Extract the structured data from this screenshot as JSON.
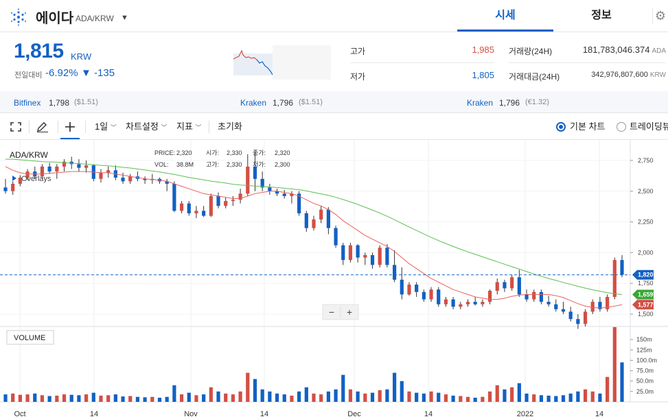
{
  "header": {
    "coin_name": "에이다",
    "pair": "ADA/KRW",
    "tabs": [
      {
        "label": "시세",
        "active": true
      },
      {
        "label": "정보",
        "active": false
      }
    ]
  },
  "price": {
    "current": "1,815",
    "unit": "KRW",
    "change_label": "전일대비",
    "change_pct": "-6.92%",
    "change_abs": "▼ -135"
  },
  "stats": {
    "high_label": "고가",
    "high": "1,985",
    "low_label": "저가",
    "low": "1,805",
    "volume_label": "거래량(24H)",
    "volume": "181,783,046.374",
    "volume_unit": "ADA",
    "value_label": "거래대금(24H)",
    "value": "342,976,807,600",
    "value_unit": "KRW"
  },
  "exchanges": [
    {
      "name": "Bitfinex",
      "price": "1,798",
      "sub": "($1.51)"
    },
    {
      "name": "Kraken",
      "price": "1,796",
      "sub": "($1.51)"
    },
    {
      "name": "Kraken",
      "price": "1,796",
      "sub": "(€1.32)"
    }
  ],
  "toolbar": {
    "period": "1일",
    "chart_settings": "차트설정",
    "indicators": "지표",
    "reset": "초기화",
    "basic_chart": "기본 차트",
    "tradingview": "트레이딩뷰"
  },
  "chart_legend": {
    "symbol": "ADA/KRW",
    "overlays": "Overlays",
    "price_lbl": "PRICE:",
    "price": "2,320",
    "open_lbl": "시가:",
    "open": "2,330",
    "close_lbl": "종가:",
    "close": "2,320",
    "vol_lbl": "VOL:",
    "vol": "38.8M",
    "high_lbl": "고가:",
    "high": "2,330",
    "low_lbl": "저가:",
    "low": "2,300",
    "volume_label": "VOLUME",
    "zoom_out": "−",
    "zoom_in": "+"
  },
  "colors": {
    "up": "#d24f45",
    "down": "#1261c4",
    "ma_short": "#e8605a",
    "ma_long": "#5cbf4f",
    "last_price_badge": "#1261c4",
    "ma_long_badge": "#3aa635",
    "ma_short_badge": "#d24f45"
  },
  "chart_data": {
    "type": "candlestick",
    "x_ticks": [
      "Oct",
      "14",
      "Nov",
      "14",
      "Dec",
      "14",
      "2022",
      "14"
    ],
    "y_ticks": [
      "2,750",
      "2,500",
      "2,250",
      "2,000",
      "1,750",
      "1,500"
    ],
    "ylim": [
      1400,
      2850
    ],
    "volume_ticks": [
      "150m",
      "125m",
      "100.0m",
      "75.0m",
      "50.0m",
      "25.0m"
    ],
    "volume_max": 175,
    "last_price": "1,820",
    "ma_long_value": "1,659",
    "ma_short_value": "1,577",
    "candles": [
      [
        2530,
        2600,
        2480,
        2500,
        18
      ],
      [
        2500,
        2580,
        2470,
        2560,
        20
      ],
      [
        2560,
        2630,
        2540,
        2610,
        17
      ],
      [
        2610,
        2680,
        2590,
        2660,
        18
      ],
      [
        2660,
        2700,
        2600,
        2620,
        20
      ],
      [
        2620,
        2720,
        2600,
        2700,
        16
      ],
      [
        2700,
        2730,
        2640,
        2660,
        14
      ],
      [
        2660,
        2720,
        2600,
        2700,
        15
      ],
      [
        2700,
        2760,
        2660,
        2740,
        18
      ],
      [
        2740,
        2780,
        2680,
        2720,
        17
      ],
      [
        2720,
        2760,
        2660,
        2690,
        16
      ],
      [
        2690,
        2750,
        2650,
        2710,
        18
      ],
      [
        2710,
        2720,
        2580,
        2600,
        22
      ],
      [
        2600,
        2680,
        2570,
        2650,
        15
      ],
      [
        2650,
        2700,
        2610,
        2670,
        16
      ],
      [
        2670,
        2710,
        2590,
        2610,
        18
      ],
      [
        2610,
        2650,
        2560,
        2580,
        13
      ],
      [
        2580,
        2640,
        2560,
        2620,
        14
      ],
      [
        2620,
        2660,
        2580,
        2600,
        12
      ],
      [
        2600,
        2620,
        2560,
        2590,
        11
      ],
      [
        2590,
        2640,
        2560,
        2600,
        12
      ],
      [
        2600,
        2610,
        2560,
        2580,
        10
      ],
      [
        2580,
        2600,
        2500,
        2560,
        12
      ],
      [
        2560,
        2580,
        2330,
        2340,
        40
      ],
      [
        2340,
        2420,
        2320,
        2400,
        18
      ],
      [
        2400,
        2420,
        2300,
        2320,
        22
      ],
      [
        2320,
        2380,
        2280,
        2340,
        16
      ],
      [
        2340,
        2380,
        2290,
        2300,
        18
      ],
      [
        2300,
        2480,
        2290,
        2460,
        35
      ],
      [
        2460,
        2490,
        2360,
        2380,
        25
      ],
      [
        2380,
        2450,
        2360,
        2420,
        20
      ],
      [
        2420,
        2460,
        2380,
        2430,
        18
      ],
      [
        2430,
        2520,
        2400,
        2480,
        25
      ],
      [
        2480,
        2800,
        2460,
        2700,
        70
      ],
      [
        2700,
        2820,
        2500,
        2600,
        55
      ],
      [
        2600,
        2660,
        2500,
        2530,
        30
      ],
      [
        2530,
        2560,
        2470,
        2500,
        25
      ],
      [
        2500,
        2520,
        2460,
        2480,
        20
      ],
      [
        2480,
        2510,
        2440,
        2460,
        18
      ],
      [
        2460,
        2500,
        2400,
        2480,
        15
      ],
      [
        2480,
        2500,
        2300,
        2320,
        25
      ],
      [
        2320,
        2340,
        2170,
        2200,
        35
      ],
      [
        2200,
        2300,
        2180,
        2270,
        20
      ],
      [
        2270,
        2380,
        2240,
        2350,
        18
      ],
      [
        2350,
        2370,
        2150,
        2200,
        25
      ],
      [
        2200,
        2220,
        2040,
        2060,
        30
      ],
      [
        2060,
        2080,
        1900,
        1940,
        65
      ],
      [
        1940,
        2080,
        1920,
        2060,
        30
      ],
      [
        2060,
        2070,
        1920,
        1960,
        25
      ],
      [
        1960,
        2000,
        1900,
        1980,
        20
      ],
      [
        1980,
        2000,
        1870,
        1900,
        22
      ],
      [
        1900,
        2060,
        1880,
        2040,
        28
      ],
      [
        2040,
        2070,
        1880,
        1900,
        30
      ],
      [
        1900,
        2020,
        1760,
        1780,
        70
      ],
      [
        1780,
        1880,
        1620,
        1660,
        50
      ],
      [
        1660,
        1760,
        1650,
        1740,
        25
      ],
      [
        1740,
        1760,
        1640,
        1680,
        22
      ],
      [
        1680,
        1700,
        1600,
        1620,
        20
      ],
      [
        1620,
        1720,
        1600,
        1700,
        25
      ],
      [
        1700,
        1720,
        1560,
        1580,
        22
      ],
      [
        1580,
        1640,
        1560,
        1620,
        18
      ],
      [
        1620,
        1640,
        1540,
        1560,
        15
      ],
      [
        1560,
        1600,
        1540,
        1580,
        14
      ],
      [
        1580,
        1620,
        1560,
        1600,
        12
      ],
      [
        1600,
        1640,
        1570,
        1580,
        10
      ],
      [
        1580,
        1620,
        1560,
        1600,
        12
      ],
      [
        1600,
        1700,
        1580,
        1690,
        25
      ],
      [
        1690,
        1790,
        1660,
        1760,
        40
      ],
      [
        1760,
        1780,
        1680,
        1710,
        30
      ],
      [
        1710,
        1820,
        1690,
        1800,
        35
      ],
      [
        1800,
        1860,
        1640,
        1660,
        45
      ],
      [
        1660,
        1700,
        1600,
        1620,
        20
      ],
      [
        1620,
        1700,
        1600,
        1680,
        18
      ],
      [
        1680,
        1700,
        1580,
        1600,
        16
      ],
      [
        1600,
        1650,
        1560,
        1580,
        15
      ],
      [
        1580,
        1620,
        1520,
        1540,
        14
      ],
      [
        1540,
        1600,
        1500,
        1520,
        16
      ],
      [
        1520,
        1560,
        1440,
        1460,
        20
      ],
      [
        1460,
        1500,
        1380,
        1420,
        25
      ],
      [
        1420,
        1540,
        1400,
        1520,
        30
      ],
      [
        1520,
        1620,
        1500,
        1600,
        25
      ],
      [
        1600,
        1640,
        1520,
        1540,
        20
      ],
      [
        1540,
        1660,
        1520,
        1640,
        60
      ],
      [
        1640,
        1960,
        1620,
        1940,
        180
      ],
      [
        1940,
        1980,
        1800,
        1820,
        95
      ]
    ],
    "ma_short": [
      2700,
      2670,
      2650,
      2640,
      2640,
      2640,
      2645,
      2650,
      2655,
      2660,
      2660,
      2660,
      2655,
      2650,
      2650,
      2640,
      2630,
      2620,
      2610,
      2600,
      2595,
      2590,
      2580,
      2560,
      2540,
      2520,
      2500,
      2480,
      2470,
      2460,
      2450,
      2440,
      2440,
      2460,
      2480,
      2490,
      2500,
      2500,
      2490,
      2480,
      2460,
      2430,
      2400,
      2380,
      2350,
      2310,
      2260,
      2220,
      2180,
      2140,
      2110,
      2080,
      2050,
      2010,
      1960,
      1910,
      1870,
      1830,
      1790,
      1760,
      1730,
      1700,
      1680,
      1660,
      1640,
      1630,
      1620,
      1620,
      1630,
      1645,
      1655,
      1660,
      1660,
      1660,
      1660,
      1650,
      1635,
      1610,
      1585,
      1565,
      1555,
      1550,
      1555,
      1565,
      1577
    ],
    "ma_long": [
      2760,
      2760,
      2755,
      2750,
      2745,
      2740,
      2738,
      2736,
      2732,
      2728,
      2724,
      2720,
      2715,
      2710,
      2706,
      2700,
      2694,
      2688,
      2680,
      2672,
      2664,
      2656,
      2646,
      2636,
      2624,
      2612,
      2602,
      2592,
      2582,
      2574,
      2566,
      2556,
      2550,
      2546,
      2542,
      2538,
      2534,
      2530,
      2524,
      2518,
      2512,
      2502,
      2490,
      2478,
      2466,
      2450,
      2432,
      2412,
      2392,
      2370,
      2346,
      2322,
      2296,
      2268,
      2238,
      2208,
      2180,
      2152,
      2124,
      2098,
      2074,
      2050,
      2028,
      2006,
      1986,
      1966,
      1946,
      1926,
      1906,
      1886,
      1866,
      1846,
      1826,
      1808,
      1790,
      1774,
      1758,
      1742,
      1726,
      1712,
      1698,
      1686,
      1675,
      1666,
      1659
    ]
  }
}
